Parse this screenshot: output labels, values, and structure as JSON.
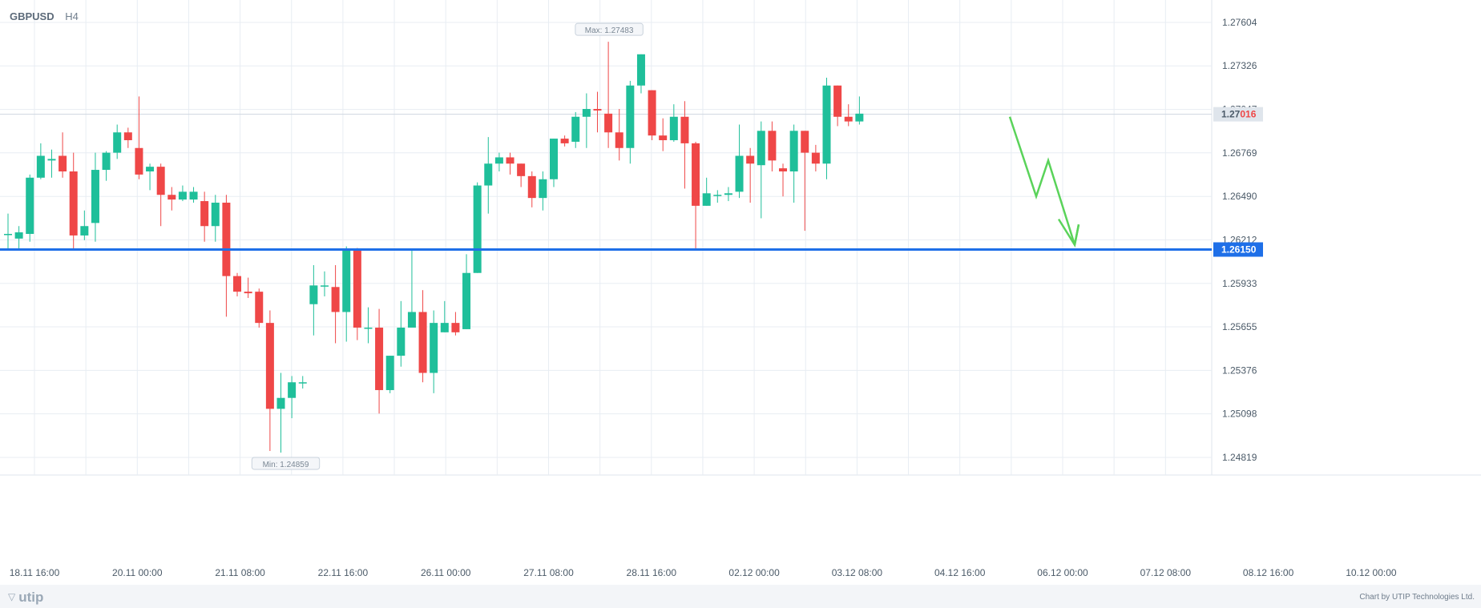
{
  "header": {
    "symbol": "GBPUSD",
    "timeframe": "H4"
  },
  "footer": {
    "brand": "utip",
    "credit": "Chart by UTIP Technologies Ltd."
  },
  "colors": {
    "bull": "#1fbf9a",
    "bear": "#ef4747",
    "grid": "#e8edf3",
    "support": "#1e6fe8",
    "arrow": "#5ad35a",
    "price_tag_text": "#ef4747"
  },
  "icons": {
    "logo": "utip-triangle-icon"
  },
  "chart_data": {
    "type": "candlestick",
    "title": "",
    "ylim": [
      1.2468,
      1.2775
    ],
    "y_ticks": [
      "1.27604",
      "1.27326",
      "1.27047",
      "1.26769",
      "1.26490",
      "1.26212",
      "1.25933",
      "1.25655",
      "1.25376",
      "1.25098",
      "1.24819"
    ],
    "x_ticks": [
      "18.11 16:00",
      "20.11 00:00",
      "21.11 08:00",
      "22.11 16:00",
      "26.11 00:00",
      "27.11 08:00",
      "28.11 16:00",
      "02.12 00:00",
      "03.12 08:00",
      "04.12 16:00",
      "06.12 00:00",
      "07.12 08:00",
      "08.12 16:00",
      "10.12 00:00"
    ],
    "candles": [
      [
        1.2625,
        1.2625,
        1.2638,
        1.2615
      ],
      [
        1.2622,
        1.2626,
        1.263,
        1.2615
      ],
      [
        1.2625,
        1.2661,
        1.2663,
        1.262
      ],
      [
        1.2661,
        1.2675,
        1.2683,
        1.266
      ],
      [
        1.2672,
        1.2673,
        1.2679,
        1.2661
      ],
      [
        1.2675,
        1.2665,
        1.269,
        1.2661
      ],
      [
        1.2665,
        1.2624,
        1.2677,
        1.2615
      ],
      [
        1.2624,
        1.263,
        1.264,
        1.2621
      ],
      [
        1.2632,
        1.2666,
        1.2677,
        1.262
      ],
      [
        1.2666,
        1.2677,
        1.2678,
        1.2659
      ],
      [
        1.2677,
        1.269,
        1.2695,
        1.2673
      ],
      [
        1.269,
        1.2685,
        1.2693,
        1.268
      ],
      [
        1.268,
        1.2663,
        1.2713,
        1.266
      ],
      [
        1.2665,
        1.2668,
        1.267,
        1.2653
      ],
      [
        1.2668,
        1.265,
        1.267,
        1.263
      ],
      [
        1.265,
        1.2647,
        1.2655,
        1.264
      ],
      [
        1.2647,
        1.2652,
        1.2656,
        1.2646
      ],
      [
        1.2647,
        1.2652,
        1.2655,
        1.2645
      ],
      [
        1.2646,
        1.263,
        1.2652,
        1.262
      ],
      [
        1.263,
        1.2645,
        1.265,
        1.262
      ],
      [
        1.2645,
        1.2598,
        1.265,
        1.2572
      ],
      [
        1.2598,
        1.2588,
        1.26,
        1.2585
      ],
      [
        1.2588,
        1.2587,
        1.2597,
        1.2584
      ],
      [
        1.2588,
        1.2568,
        1.259,
        1.2565
      ],
      [
        1.2568,
        1.2513,
        1.2576,
        1.2486
      ],
      [
        1.2513,
        1.252,
        1.2536,
        1.2485
      ],
      [
        1.252,
        1.253,
        1.2534,
        1.2507
      ],
      [
        1.253,
        1.253,
        1.2534,
        1.2526
      ],
      [
        1.258,
        1.2592,
        1.2605,
        1.256
      ],
      [
        1.2592,
        1.2592,
        1.2601,
        1.2585
      ],
      [
        1.2591,
        1.2575,
        1.2605,
        1.2555
      ],
      [
        1.2575,
        1.2615,
        1.2617,
        1.2556
      ],
      [
        1.2615,
        1.2565,
        1.2616,
        1.2557
      ],
      [
        1.2565,
        1.2565,
        1.2578,
        1.2555
      ],
      [
        1.2565,
        1.2525,
        1.2577,
        1.251
      ],
      [
        1.2525,
        1.2547,
        1.2547,
        1.2523
      ],
      [
        1.2547,
        1.2565,
        1.2582,
        1.254
      ],
      [
        1.2565,
        1.2575,
        1.2615,
        1.257
      ],
      [
        1.2575,
        1.2536,
        1.2589,
        1.253
      ],
      [
        1.2536,
        1.2568,
        1.2576,
        1.2523
      ],
      [
        1.2562,
        1.2568,
        1.2582,
        1.2562
      ],
      [
        1.2568,
        1.2562,
        1.2575,
        1.256
      ],
      [
        1.2564,
        1.26,
        1.2612,
        1.2564
      ],
      [
        1.26,
        1.2656,
        1.2658,
        1.26
      ],
      [
        1.2656,
        1.267,
        1.2687,
        1.2638
      ],
      [
        1.267,
        1.2674,
        1.2677,
        1.2665
      ],
      [
        1.2674,
        1.267,
        1.2677,
        1.2663
      ],
      [
        1.267,
        1.2662,
        1.267,
        1.2655
      ],
      [
        1.2662,
        1.2648,
        1.2665,
        1.2642
      ],
      [
        1.2648,
        1.266,
        1.2665,
        1.264
      ],
      [
        1.266,
        1.2686,
        1.2686,
        1.2655
      ],
      [
        1.2686,
        1.2683,
        1.2688,
        1.2681
      ],
      [
        1.2684,
        1.27,
        1.2703,
        1.268
      ],
      [
        1.27,
        1.2705,
        1.2715,
        1.268
      ],
      [
        1.2705,
        1.2704,
        1.2716,
        1.269
      ],
      [
        1.2702,
        1.269,
        1.2748,
        1.268
      ],
      [
        1.269,
        1.268,
        1.2705,
        1.2672
      ],
      [
        1.268,
        1.272,
        1.2723,
        1.267
      ],
      [
        1.272,
        1.274,
        1.274,
        1.2715
      ],
      [
        1.2717,
        1.2688,
        1.2717,
        1.2685
      ],
      [
        1.2688,
        1.2685,
        1.2699,
        1.2678
      ],
      [
        1.2685,
        1.27,
        1.2708,
        1.2684
      ],
      [
        1.27,
        1.2683,
        1.271,
        1.2654
      ],
      [
        1.2683,
        1.2643,
        1.2684,
        1.2615
      ],
      [
        1.2643,
        1.2651,
        1.2661,
        1.2643
      ],
      [
        1.265,
        1.265,
        1.2653,
        1.2645
      ],
      [
        1.265,
        1.2651,
        1.2655,
        1.2646
      ],
      [
        1.2652,
        1.2675,
        1.2695,
        1.2648
      ],
      [
        1.2675,
        1.267,
        1.268,
        1.2645
      ],
      [
        1.2669,
        1.2691,
        1.2697,
        1.2635
      ],
      [
        1.2691,
        1.2672,
        1.2697,
        1.2665
      ],
      [
        1.2667,
        1.2665,
        1.267,
        1.2649
      ],
      [
        1.2665,
        1.2691,
        1.2695,
        1.2645
      ],
      [
        1.2691,
        1.2677,
        1.2691,
        1.2627
      ],
      [
        1.2677,
        1.267,
        1.2682,
        1.2665
      ],
      [
        1.267,
        1.272,
        1.2725,
        1.266
      ],
      [
        1.272,
        1.27,
        1.272,
        1.2694
      ],
      [
        1.27,
        1.2697,
        1.2708,
        1.2694
      ],
      [
        1.2697,
        1.2702,
        1.2713,
        1.2695
      ]
    ],
    "projection": [
      [
        "05.12 04:00",
        1.27
      ],
      [
        "05.12 12:00",
        1.2649
      ],
      [
        "05.12 16:00",
        1.2672
      ],
      [
        "06.12 00:00",
        1.2618
      ],
      [
        "06.12 04:00",
        1.2631
      ]
    ],
    "support_level": 1.2615,
    "support_label": "1.26150",
    "current_price": 1.27016,
    "current_price_label": {
      "prefix": "1.27",
      "suffix": "016"
    },
    "max_label": "Max: 1.27483",
    "min_label": "Min: 1.24859",
    "max_index": 55,
    "min_index": 25
  }
}
